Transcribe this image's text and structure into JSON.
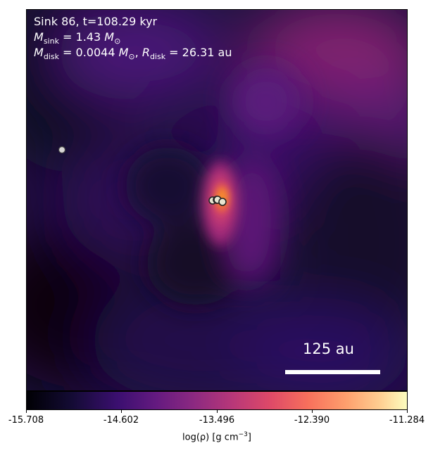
{
  "panel": {
    "sink_line": "Sink 86, t=108.29 kyr",
    "msink_symbol": "M",
    "msink_sub": "sink",
    "msink_value": " = 1.43 ",
    "msun_symbol": "M",
    "msun_sub": "⊙",
    "mdisk_symbol": "M",
    "mdisk_sub": "disk",
    "mdisk_value": " = 0.0044 ",
    "mdisk_sun_symbol": "M",
    "mdisk_sun_sub": "⊙",
    "rdisk_sep": ", ",
    "rdisk_symbol": "R",
    "rdisk_sub": "disk",
    "rdisk_value": " = 26.31 au"
  },
  "scalebar": {
    "label": "125 au"
  },
  "colorbar": {
    "colormap": "inferno",
    "ticks": [
      "-15.708",
      "-14.602",
      "-13.496",
      "-12.390",
      "-11.284"
    ],
    "label_prefix": "log(ρ) [g cm",
    "label_exp": "−3",
    "label_suffix": "]"
  },
  "sinks": {
    "count": 5,
    "marker_fill": "#e8e4d0",
    "marker_edge": "#222222"
  }
}
